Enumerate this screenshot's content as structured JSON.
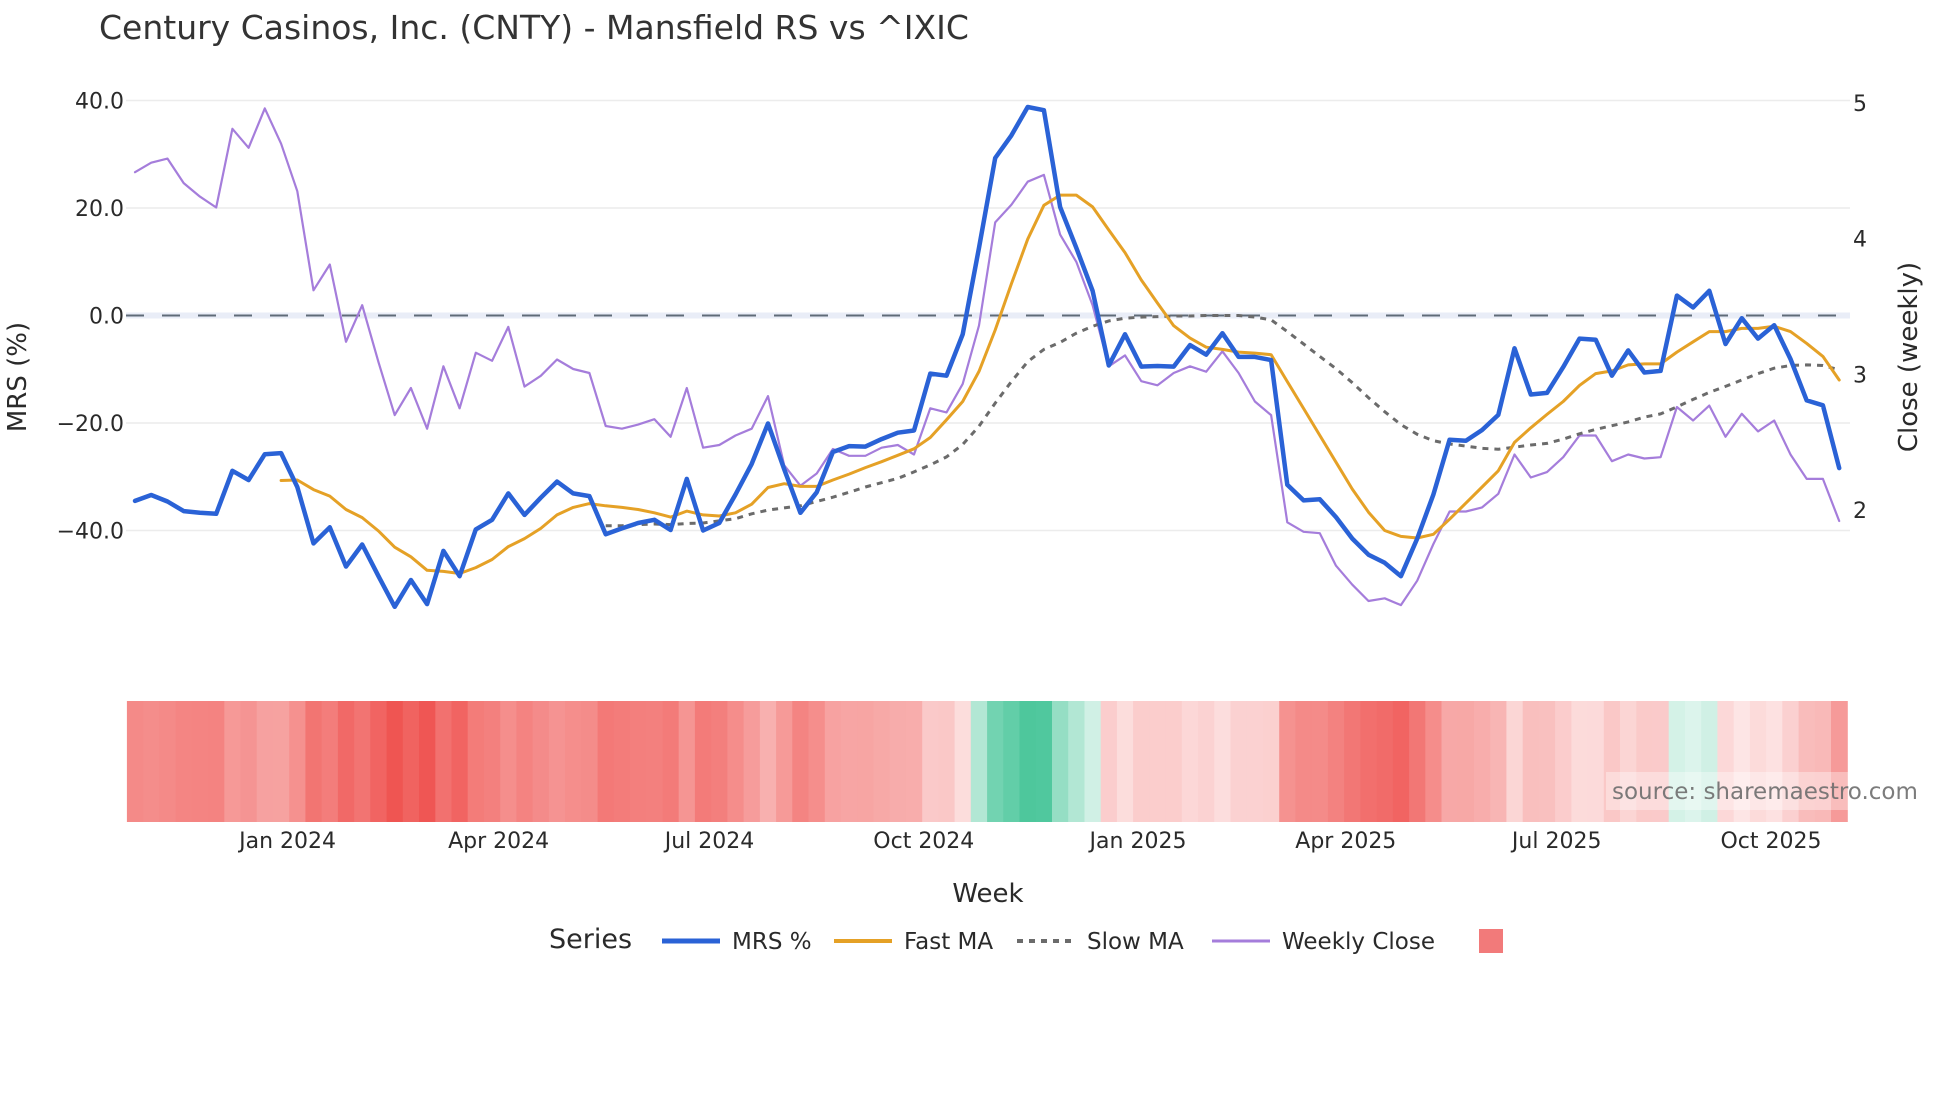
{
  "chart_data": {
    "type": "line",
    "title": "Century Casinos, Inc. (CNTY) - Mansfield RS vs ^IXIC",
    "xlabel": "Week",
    "ylabel": "MRS (%)",
    "y2label": "Close (weekly)",
    "ylim": [
      -60,
      42
    ],
    "y2lim": [
      1.05,
      5.02
    ],
    "yticks": [
      {
        "value": 40,
        "label": "40.0"
      },
      {
        "value": 20,
        "label": "20.0"
      },
      {
        "value": 0,
        "label": "0.0"
      },
      {
        "value": -20,
        "label": "−20.0"
      },
      {
        "value": -40,
        "label": "−40.0"
      }
    ],
    "y2ticks": [
      {
        "value": 5,
        "label": "5"
      },
      {
        "value": 4,
        "label": "4"
      },
      {
        "value": 3,
        "label": "3"
      },
      {
        "value": 2,
        "label": "2"
      }
    ],
    "xticks": [
      {
        "index": 9.4,
        "label": "Jan 2024"
      },
      {
        "index": 22.4,
        "label": "Apr 2024"
      },
      {
        "index": 35.4,
        "label": "Jul 2024"
      },
      {
        "index": 48.6,
        "label": "Oct 2024"
      },
      {
        "index": 61.8,
        "label": "Jan 2025"
      },
      {
        "index": 74.6,
        "label": "Apr 2025"
      },
      {
        "index": 87.6,
        "label": "Jul 2025"
      },
      {
        "index": 100.8,
        "label": "Oct 2025"
      }
    ],
    "grid": true,
    "zero_line": {
      "value": 0,
      "style": "dashed"
    },
    "legend_position": "bottom",
    "n_weeks": 106,
    "series": [
      {
        "name": "MRS %",
        "axis": "left",
        "color": "#2a62d6",
        "width": 4.5,
        "dash": "solid",
        "start_index": 0,
        "values": [
          -34.5,
          -33.4,
          -34.6,
          -36.4,
          -36.7,
          -36.9,
          -28.9,
          -30.6,
          -25.8,
          -25.6,
          -31.9,
          -42.4,
          -39.4,
          -46.7,
          -42.6,
          -48.5,
          -54.2,
          -49.2,
          -53.7,
          -43.8,
          -48.5,
          -39.8,
          -38.0,
          -33.1,
          -37.1,
          -33.9,
          -30.9,
          -33.1,
          -33.6,
          -40.7,
          -39.6,
          -38.6,
          -38.0,
          -39.9,
          -30.4,
          -40.0,
          -38.6,
          -33.3,
          -27.6,
          -20.1,
          -28.6,
          -36.7,
          -32.9,
          -25.4,
          -24.3,
          -24.4,
          -23.0,
          -21.8,
          -21.4,
          -10.8,
          -11.2,
          -3.5,
          12.6,
          29.3,
          33.5,
          38.8,
          38.2,
          20.2,
          12.6,
          4.6,
          -9.3,
          -3.5,
          -9.5,
          -9.4,
          -9.5,
          -5.5,
          -7.3,
          -3.3,
          -7.7,
          -7.7,
          -8.3,
          -31.5,
          -34.4,
          -34.2,
          -37.5,
          -41.5,
          -44.5,
          -46.0,
          -48.5,
          -41.5,
          -33.3,
          -23.1,
          -23.3,
          -21.3,
          -18.5,
          -6.1,
          -14.7,
          -14.4,
          -9.6,
          -4.3,
          -4.5,
          -11.2,
          -6.5,
          -10.6,
          -10.3,
          3.7,
          1.5,
          4.6,
          -5.3,
          -0.5,
          -4.3,
          -1.8,
          -8.1,
          -15.8,
          -16.7,
          -28.4
        ]
      },
      {
        "name": "Fast MA",
        "axis": "left",
        "color": "#e5a126",
        "width": 3,
        "dash": "solid",
        "start_index": 9,
        "values": [
          -30.7,
          -30.6,
          -32.4,
          -33.6,
          -36.1,
          -37.6,
          -40.1,
          -43.1,
          -44.9,
          -47.4,
          -47.6,
          -48.0,
          -46.9,
          -45.4,
          -43.0,
          -41.5,
          -39.6,
          -37.1,
          -35.7,
          -35.0,
          -35.4,
          -35.7,
          -36.1,
          -36.7,
          -37.5,
          -36.4,
          -37.1,
          -37.3,
          -36.7,
          -35.1,
          -32.0,
          -31.3,
          -31.8,
          -31.8,
          -30.6,
          -29.5,
          -28.3,
          -27.2,
          -26.0,
          -24.8,
          -22.7,
          -19.4,
          -16.0,
          -10.4,
          -2.7,
          5.9,
          14.2,
          20.5,
          22.4,
          22.4,
          20.2,
          15.9,
          11.7,
          6.6,
          2.3,
          -1.9,
          -4.2,
          -5.9,
          -6.3,
          -6.8,
          -7.0,
          -7.3,
          -12.3,
          -17.3,
          -22.3,
          -27.3,
          -32.3,
          -36.6,
          -40.0,
          -41.1,
          -41.4,
          -40.7,
          -37.9,
          -34.9,
          -31.9,
          -28.9,
          -23.6,
          -20.9,
          -18.4,
          -16.0,
          -13.0,
          -10.8,
          -10.3,
          -9.2,
          -9.0,
          -9.0,
          -6.8,
          -4.9,
          -3.0,
          -3.0,
          -2.4,
          -2.4,
          -2.0,
          -3.0,
          -5.2,
          -7.6,
          -12.0
        ]
      },
      {
        "name": "Slow MA",
        "axis": "left",
        "color": "#6b6b6b",
        "width": 3,
        "dash": "dotted",
        "start_index": 29,
        "values": [
          -39.1,
          -39.1,
          -38.9,
          -38.8,
          -38.9,
          -38.7,
          -38.6,
          -38.2,
          -37.8,
          -36.9,
          -36.2,
          -35.8,
          -35.4,
          -34.6,
          -33.8,
          -32.9,
          -31.9,
          -31.1,
          -30.3,
          -29.1,
          -27.8,
          -26.3,
          -24.0,
          -20.6,
          -16.3,
          -12.3,
          -8.6,
          -6.3,
          -5.0,
          -3.3,
          -2.0,
          -1.0,
          -0.5,
          -0.3,
          -0.2,
          -0.1,
          -0.1,
          0.0,
          0.0,
          0.0,
          -0.3,
          -0.8,
          -3.0,
          -5.3,
          -7.6,
          -9.9,
          -12.5,
          -15.3,
          -17.9,
          -20.3,
          -22.1,
          -23.3,
          -23.9,
          -24.3,
          -24.7,
          -24.9,
          -24.5,
          -24.1,
          -23.8,
          -23.0,
          -22.0,
          -21.2,
          -20.5,
          -19.8,
          -18.9,
          -18.3,
          -17.0,
          -15.6,
          -14.3,
          -13.2,
          -12.0,
          -10.8,
          -9.8,
          -9.3,
          -9.2,
          -9.3,
          -10.1
        ]
      },
      {
        "name": "Weekly Close",
        "axis": "right",
        "color": "#a57ddb",
        "width": 2.2,
        "dash": "solid",
        "start_index": 0,
        "values": [
          4.49,
          4.56,
          4.59,
          4.41,
          4.31,
          4.23,
          4.81,
          4.67,
          4.96,
          4.7,
          4.35,
          3.62,
          3.81,
          3.24,
          3.51,
          3.09,
          2.7,
          2.9,
          2.6,
          3.06,
          2.75,
          3.16,
          3.1,
          3.35,
          2.91,
          2.99,
          3.11,
          3.04,
          3.01,
          2.62,
          2.6,
          2.63,
          2.67,
          2.54,
          2.9,
          2.46,
          2.48,
          2.55,
          2.6,
          2.84,
          2.33,
          2.18,
          2.27,
          2.45,
          2.4,
          2.4,
          2.46,
          2.48,
          2.41,
          2.75,
          2.72,
          2.93,
          3.36,
          4.12,
          4.25,
          4.42,
          4.47,
          4.03,
          3.83,
          3.51,
          3.06,
          3.14,
          2.95,
          2.92,
          3.01,
          3.06,
          3.02,
          3.17,
          3.01,
          2.8,
          2.7,
          1.91,
          1.84,
          1.83,
          1.59,
          1.45,
          1.33,
          1.35,
          1.3,
          1.48,
          1.75,
          1.99,
          1.99,
          2.02,
          2.12,
          2.41,
          2.24,
          2.28,
          2.39,
          2.55,
          2.55,
          2.36,
          2.41,
          2.38,
          2.39,
          2.76,
          2.66,
          2.77,
          2.54,
          2.71,
          2.58,
          2.66,
          2.41,
          2.23,
          2.23,
          1.92
        ]
      }
    ],
    "heatmap": {
      "source_series": "MRS %",
      "neg_max_color": "#ef5350",
      "neg_zero_color": "#fde6e6",
      "pos_zero_color": "#e2f6ef",
      "pos_max_color": "#4dc79c",
      "neg_extreme": -55,
      "pos_extreme": 39
    },
    "legend": {
      "title": "Series",
      "items": [
        {
          "label": "MRS %",
          "color": "#2a62d6",
          "dash": "solid",
          "width": 5
        },
        {
          "label": "Fast MA",
          "color": "#e5a126",
          "dash": "solid",
          "width": 4
        },
        {
          "label": "Slow MA",
          "color": "#6b6b6b",
          "dash": "dotted",
          "width": 4
        },
        {
          "label": "Weekly Close",
          "color": "#a57ddb",
          "dash": "solid",
          "width": 3
        },
        {
          "label": "",
          "color": "#f27a7a",
          "dash": "square",
          "width": 0
        }
      ]
    },
    "watermark": "source: sharemaestro.com"
  },
  "colors": {
    "grid": "#ececec",
    "zero_line": "#5f6b78",
    "zero_band": "#e9edf7",
    "text": "#2a2a2a"
  }
}
